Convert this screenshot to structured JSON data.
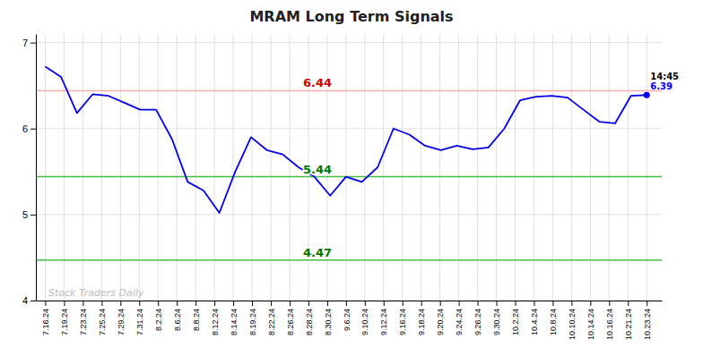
{
  "chart_data": {
    "type": "line",
    "title": "MRAM Long Term Signals",
    "x": [
      0,
      0.8421052632,
      1.6842105263,
      2.5263157895,
      3.3684210526,
      4.2105263158,
      5.0526315789,
      5.8947368421,
      6.7368421053,
      7.5789473684,
      8.4210526316,
      9.2631578947,
      10.1052631579,
      10.9473684211,
      11.7894736842,
      12.6315789474,
      13.4736842105,
      14.3157894737,
      15.1578947368,
      16,
      16.8421052632,
      17.6842105263,
      18.5263157895,
      19.3684210526,
      20.2105263158,
      21.0526315789,
      21.8947368421,
      22.7368421053,
      23.5789473684,
      24.4210526316,
      25.2631578947,
      26.1052631579,
      26.9473684211,
      27.7894736842,
      28.6315789474,
      29.4736842105,
      30.3157894737,
      31.1578947368,
      32
    ],
    "series": [
      {
        "color": "#0000ee",
        "values": [
          6.72,
          6.6,
          6.18,
          6.4,
          6.38,
          6.3,
          6.22,
          6.22,
          5.88,
          5.38,
          5.28,
          5.02,
          5.5,
          5.9,
          5.75,
          5.7,
          5.55,
          5.44,
          5.22,
          5.44,
          5.38,
          5.55,
          6.0,
          5.93,
          5.8,
          5.75,
          5.8,
          5.76,
          5.78,
          6.0,
          6.33,
          6.37,
          6.38,
          6.36,
          6.22,
          6.08,
          6.06,
          6.38,
          6.39
        ]
      }
    ],
    "xlim": [
      -0.5,
      32.8
    ],
    "xticks": [
      {
        "value": 0,
        "label": "7.16.24"
      },
      {
        "value": 1,
        "label": "7.19.24"
      },
      {
        "value": 2,
        "label": "7.23.24"
      },
      {
        "value": 3,
        "label": "7.25.24"
      },
      {
        "value": 4,
        "label": "7.29.24"
      },
      {
        "value": 5,
        "label": "7.31.24"
      },
      {
        "value": 6,
        "label": "8.2.24"
      },
      {
        "value": 7,
        "label": "8.6.24"
      },
      {
        "value": 8,
        "label": "8.8.24"
      },
      {
        "value": 9,
        "label": "8.12.24"
      },
      {
        "value": 10,
        "label": "8.14.24"
      },
      {
        "value": 11,
        "label": "8.19.24"
      },
      {
        "value": 12,
        "label": "8.22.24"
      },
      {
        "value": 13,
        "label": "8.26.24"
      },
      {
        "value": 14,
        "label": "8.28.24"
      },
      {
        "value": 15,
        "label": "8.30.24"
      },
      {
        "value": 16,
        "label": "9.6.24"
      },
      {
        "value": 17,
        "label": "9.10.24"
      },
      {
        "value": 18,
        "label": "9.12.24"
      },
      {
        "value": 19,
        "label": "9.16.24"
      },
      {
        "value": 20,
        "label": "9.18.24"
      },
      {
        "value": 21,
        "label": "9.20.24"
      },
      {
        "value": 22,
        "label": "9.24.24"
      },
      {
        "value": 23,
        "label": "9.26.24"
      },
      {
        "value": 24,
        "label": "9.30.24"
      },
      {
        "value": 25,
        "label": "10.2.24"
      },
      {
        "value": 26,
        "label": "10.4.24"
      },
      {
        "value": 27,
        "label": "10.8.24"
      },
      {
        "value": 28,
        "label": "10.10.24"
      },
      {
        "value": 29,
        "label": "10.14.24"
      },
      {
        "value": 30,
        "label": "10.16.24"
      },
      {
        "value": 31,
        "label": "10.21.24"
      },
      {
        "value": 32,
        "label": "10.23.24"
      }
    ],
    "ylim": [
      4.0,
      7.1
    ],
    "yticks": [
      4,
      5,
      6,
      7
    ],
    "grid": true,
    "reference_lines": [
      {
        "y": 6.44,
        "label": "6.44",
        "color": "#ffaaaa",
        "label_color": "#cc0000"
      },
      {
        "y": 5.44,
        "label": "5.44",
        "color": "#44bb44",
        "label_color": "#007700"
      },
      {
        "y": 4.47,
        "label": "4.47",
        "color": "#44bb44",
        "label_color": "#007700"
      }
    ],
    "annotations": [
      "14:45",
      "6.39",
      "Stock Traders Daily"
    ]
  }
}
